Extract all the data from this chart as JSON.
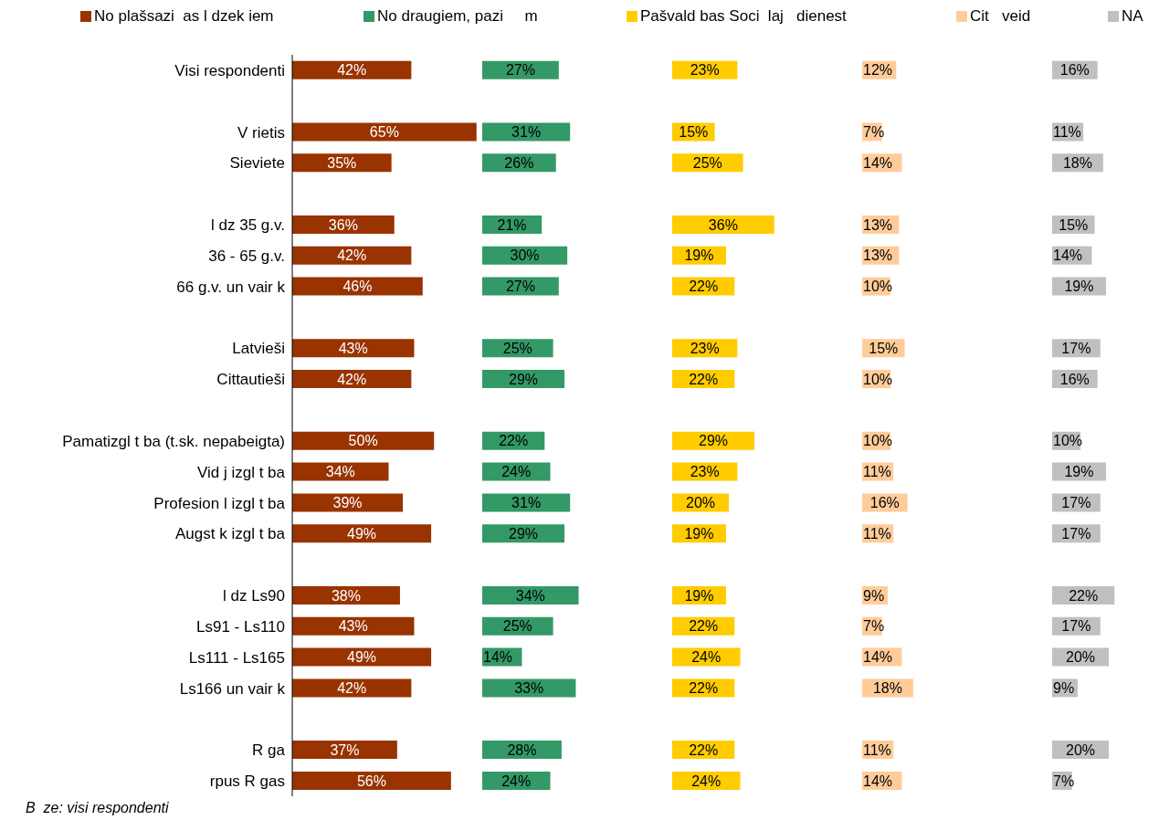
{
  "chart_data": [
    {
      "type": "bar",
      "orientation": "horizontal",
      "legend": "top",
      "categories": [
        "Visi respondenti",
        null,
        "V rietis",
        "Sieviete",
        null,
        "l dz 35 g.v.",
        "36 - 65 g.v.",
        "66 g.v. un vair  k",
        null,
        "Latvieši",
        "Cittautieši",
        null,
        "Pamatizgl t ba (t.sk. nepabeigta)",
        "Vid  j   izgl t ba",
        "Profesion  l   izgl t ba",
        "Augst  k   izgl t ba",
        null,
        "l dz Ls90",
        "Ls91 - Ls110",
        "Ls111 - Ls165",
        "Ls166 un vair  k",
        null,
        "R ga",
        "rpus R gas"
      ],
      "series": [
        {
          "name": "No plašsazi  as l dzek iem",
          "color": "#993300",
          "values": [
            42,
            null,
            65,
            35,
            null,
            36,
            42,
            46,
            null,
            43,
            42,
            null,
            50,
            34,
            39,
            49,
            null,
            38,
            43,
            49,
            42,
            null,
            37,
            56
          ],
          "value_labels": [
            "42%",
            null,
            "65%",
            "35%",
            null,
            "36%",
            "42%",
            "46%",
            null,
            "43%",
            "42%",
            null,
            "50%",
            "34%",
            "39%",
            "49%",
            null,
            "38%",
            "43%",
            "49%",
            "42%",
            null,
            "37%",
            "56%"
          ]
        }
      ],
      "annotations": [
        "B  ze: visi respondenti"
      ]
    },
    {
      "type": "bar",
      "orientation": "horizontal",
      "legend": "top",
      "tick_labels": false,
      "categories": [
        null,
        null,
        null,
        null,
        null,
        null,
        null,
        null,
        null,
        null,
        null,
        null,
        null,
        null,
        null,
        null,
        null,
        null,
        null,
        null,
        null,
        null,
        null,
        null
      ],
      "series": [
        {
          "name": "No draugiem, pazi     m",
          "color": "#339966",
          "values": [
            27,
            null,
            31,
            26,
            null,
            21,
            30,
            27,
            null,
            25,
            29,
            null,
            22,
            24,
            31,
            29,
            null,
            34,
            25,
            14,
            33,
            null,
            28,
            24
          ],
          "value_labels": [
            "27%",
            null,
            "31%",
            "26%",
            null,
            "21%",
            "30%",
            "27%",
            null,
            "25%",
            "29%",
            null,
            "22%",
            "24%",
            "31%",
            "29%",
            null,
            "34%",
            "25%",
            "14%",
            "33%",
            null,
            "28%",
            "24%"
          ]
        }
      ]
    },
    {
      "type": "bar",
      "orientation": "horizontal",
      "legend": "top",
      "tick_labels": false,
      "categories": [
        null,
        null,
        null,
        null,
        null,
        null,
        null,
        null,
        null,
        null,
        null,
        null,
        null,
        null,
        null,
        null,
        null,
        null,
        null,
        null,
        null,
        null,
        null,
        null
      ],
      "series": [
        {
          "name": "Pašvald bas Soci  laj   dienest",
          "color": "#ffcc00",
          "values": [
            23,
            null,
            15,
            25,
            null,
            36,
            19,
            22,
            null,
            23,
            22,
            null,
            29,
            23,
            20,
            19,
            null,
            19,
            22,
            24,
            22,
            null,
            22,
            24
          ],
          "value_labels": [
            "23%",
            null,
            "15%",
            "25%",
            null,
            "36%",
            "19%",
            "22%",
            null,
            "23%",
            "22%",
            null,
            "29%",
            "23%",
            "20%",
            "19%",
            null,
            "19%",
            "22%",
            "24%",
            "22%",
            null,
            "22%",
            "24%"
          ]
        }
      ]
    },
    {
      "type": "bar",
      "orientation": "horizontal",
      "legend": "top",
      "tick_labels": false,
      "categories": [
        null,
        null,
        null,
        null,
        null,
        null,
        null,
        null,
        null,
        null,
        null,
        null,
        null,
        null,
        null,
        null,
        null,
        null,
        null,
        null,
        null,
        null,
        null,
        null
      ],
      "series": [
        {
          "name": "Cit   veid",
          "color": "#ffcc99",
          "values": [
            12,
            null,
            7,
            14,
            null,
            13,
            13,
            10,
            null,
            15,
            10,
            null,
            10,
            11,
            16,
            11,
            null,
            9,
            7,
            14,
            18,
            null,
            11,
            14
          ],
          "value_labels": [
            "12%",
            null,
            "7%",
            "14%",
            null,
            "13%",
            "13%",
            "10%",
            null,
            "15%",
            "10%",
            null,
            "10%",
            "11%",
            "16%",
            "11%",
            null,
            "9%",
            "7%",
            "14%",
            "18%",
            null,
            "11%",
            "14%"
          ]
        }
      ]
    },
    {
      "type": "bar",
      "orientation": "horizontal",
      "legend": "top",
      "tick_labels": false,
      "categories": [
        null,
        null,
        null,
        null,
        null,
        null,
        null,
        null,
        null,
        null,
        null,
        null,
        null,
        null,
        null,
        null,
        null,
        null,
        null,
        null,
        null,
        null,
        null,
        null
      ],
      "series": [
        {
          "name": "NA",
          "color": "#c0c0c0",
          "values": [
            16,
            null,
            11,
            18,
            null,
            15,
            14,
            19,
            null,
            17,
            16,
            null,
            10,
            19,
            17,
            17,
            null,
            22,
            17,
            20,
            9,
            null,
            20,
            7
          ],
          "value_labels": [
            "16%",
            null,
            "11%",
            "18%",
            null,
            "15%",
            "14%",
            "19%",
            null,
            "17%",
            "16%",
            null,
            "10%",
            "19%",
            "17%",
            "17%",
            null,
            "22%",
            "17%",
            "20%",
            "9%",
            null,
            "20%",
            "7%"
          ]
        }
      ]
    }
  ]
}
